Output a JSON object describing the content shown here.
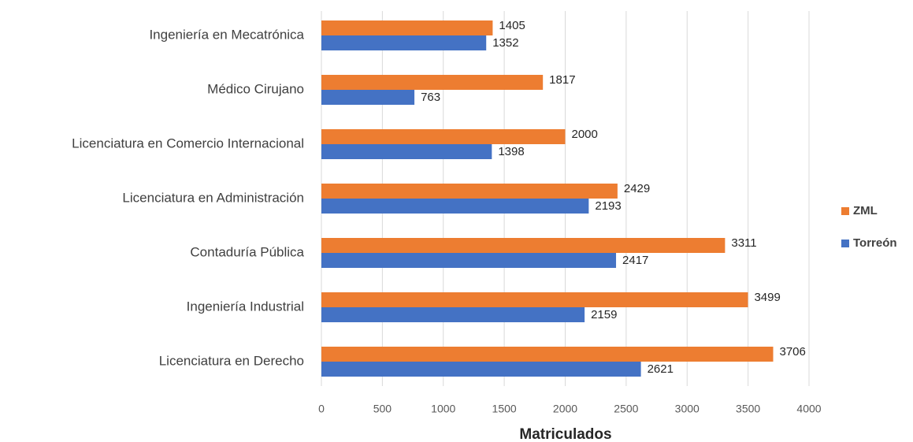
{
  "chart_data": {
    "type": "bar",
    "orientation": "horizontal",
    "categories": [
      "Ingeniería en Mecatrónica",
      "Médico Cirujano",
      "Licenciatura en Comercio Internacional",
      "Licenciatura en Administración",
      "Contaduría Pública",
      "Ingeniería Industrial",
      "Licenciatura en Derecho"
    ],
    "series": [
      {
        "name": "ZML",
        "color": "#ed7d31",
        "values": [
          1405,
          1817,
          2000,
          2429,
          3311,
          3499,
          3706
        ]
      },
      {
        "name": "Torreón",
        "color": "#4472c4",
        "values": [
          1352,
          763,
          1398,
          2193,
          2417,
          2159,
          2621
        ]
      }
    ],
    "xlabel": "Matriculados",
    "xlim": [
      0,
      4000
    ],
    "xticks": [
      0,
      500,
      1000,
      1500,
      2000,
      2500,
      3000,
      3500,
      4000
    ],
    "grid": true,
    "legend": "right"
  }
}
